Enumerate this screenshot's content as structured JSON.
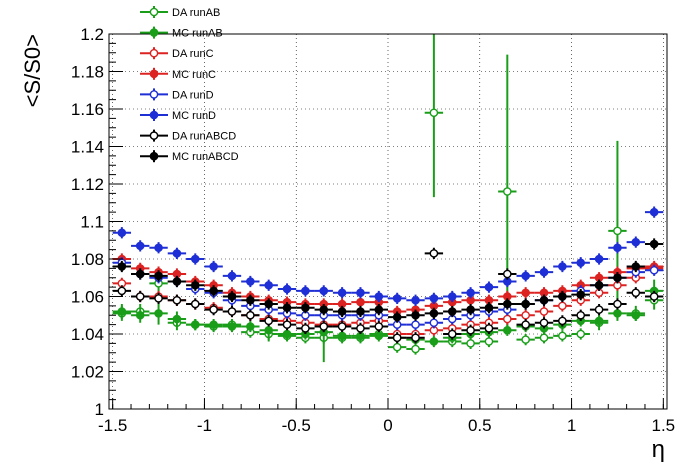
{
  "chart_data": {
    "type": "scatter",
    "xlabel": "η",
    "ylabel": "<S/S0>",
    "xlim": [
      -1.52,
      1.52
    ],
    "ylim": [
      1.0,
      1.2
    ],
    "x_ticks": [
      -1.5,
      -1,
      -0.5,
      0,
      0.5,
      1,
      1.5
    ],
    "x_tick_labels": [
      "-1.5",
      "-1",
      "-0.5",
      "0",
      "0.5",
      "1",
      "1.5"
    ],
    "y_ticks": [
      1.0,
      1.02,
      1.04,
      1.06,
      1.08,
      1.1,
      1.12,
      1.14,
      1.16,
      1.18,
      1.2
    ],
    "y_tick_labels": [
      "1",
      "1.02",
      "1.04",
      "1.06",
      "1.08",
      "1.1",
      "1.12",
      "1.14",
      "1.16",
      "1.18",
      "1.2"
    ],
    "grid": true,
    "legend_position": "top-left",
    "x": [
      -1.45,
      -1.35,
      -1.25,
      -1.15,
      -1.05,
      -0.95,
      -0.85,
      -0.75,
      -0.65,
      -0.55,
      -0.45,
      -0.35,
      -0.25,
      -0.15,
      -0.05,
      0.05,
      0.15,
      0.25,
      0.35,
      0.45,
      0.55,
      0.65,
      0.75,
      0.85,
      0.95,
      1.05,
      1.15,
      1.25,
      1.35,
      1.45
    ],
    "series": [
      {
        "name": "DA runAB",
        "color": "#1a9e1a",
        "marker": "open",
        "values": [
          1.051,
          1.052,
          1.067,
          1.046,
          1.045,
          1.044,
          1.045,
          1.041,
          1.04,
          1.039,
          1.038,
          1.038,
          1.038,
          1.038,
          1.04,
          1.033,
          1.032,
          1.158,
          1.036,
          1.035,
          1.036,
          1.116,
          1.037,
          1.038,
          1.039,
          1.04,
          1.046,
          1.095,
          1.051,
          1.058
        ],
        "errors": [
          0.004,
          0.004,
          0.007,
          0.004,
          0.003,
          0.003,
          0.003,
          0.003,
          0.003,
          0.003,
          0.003,
          0.003,
          0.003,
          0.003,
          0.003,
          0.003,
          0.003,
          0.045,
          0.003,
          0.003,
          0.003,
          0.073,
          0.003,
          0.003,
          0.003,
          0.003,
          0.004,
          0.048,
          0.004,
          0.005
        ]
      },
      {
        "name": "MC runAB",
        "color": "#1a9e1a",
        "marker": "filled",
        "values": [
          1.052,
          1.05,
          1.051,
          1.048,
          1.045,
          1.045,
          1.044,
          1.044,
          1.042,
          1.04,
          1.04,
          1.041,
          1.039,
          1.039,
          1.039,
          1.038,
          1.037,
          1.036,
          1.038,
          1.04,
          1.041,
          1.042,
          1.044,
          1.043,
          1.045,
          1.047,
          1.047,
          1.051,
          1.05,
          1.063
        ],
        "errors": [
          0.004,
          0.004,
          0.006,
          0.004,
          0.003,
          0.003,
          0.003,
          0.003,
          0.006,
          0.003,
          0.003,
          0.016,
          0.003,
          0.003,
          0.003,
          0.003,
          0.003,
          0.003,
          0.003,
          0.003,
          0.003,
          0.003,
          0.003,
          0.003,
          0.003,
          0.003,
          0.003,
          0.003,
          0.003,
          0.006
        ]
      },
      {
        "name": "DA runC",
        "color": "#dd2222",
        "marker": "open",
        "values": [
          1.067,
          1.06,
          1.06,
          1.058,
          1.056,
          1.054,
          1.052,
          1.05,
          1.048,
          1.047,
          1.046,
          1.045,
          1.045,
          1.046,
          1.047,
          1.04,
          1.04,
          1.042,
          1.043,
          1.045,
          1.046,
          1.048,
          1.05,
          1.052,
          1.055,
          1.058,
          1.062,
          1.066,
          1.07,
          1.075
        ],
        "errors": [
          0.003,
          0.003,
          0.003,
          0.003,
          0.003,
          0.003,
          0.003,
          0.003,
          0.003,
          0.003,
          0.003,
          0.003,
          0.003,
          0.003,
          0.003,
          0.003,
          0.003,
          0.003,
          0.003,
          0.003,
          0.003,
          0.003,
          0.003,
          0.003,
          0.003,
          0.003,
          0.003,
          0.003,
          0.003,
          0.003
        ]
      },
      {
        "name": "MC runC",
        "color": "#dd2222",
        "marker": "filled",
        "values": [
          1.08,
          1.075,
          1.073,
          1.072,
          1.068,
          1.066,
          1.062,
          1.06,
          1.058,
          1.057,
          1.056,
          1.056,
          1.056,
          1.057,
          1.057,
          1.052,
          1.053,
          1.055,
          1.057,
          1.058,
          1.058,
          1.06,
          1.062,
          1.062,
          1.063,
          1.066,
          1.07,
          1.073,
          1.075,
          1.076
        ],
        "errors": [
          0.003,
          0.003,
          0.003,
          0.003,
          0.003,
          0.003,
          0.003,
          0.003,
          0.003,
          0.003,
          0.003,
          0.003,
          0.003,
          0.003,
          0.003,
          0.003,
          0.003,
          0.003,
          0.003,
          0.003,
          0.003,
          0.003,
          0.003,
          0.003,
          0.003,
          0.003,
          0.003,
          0.003,
          0.003,
          0.003
        ]
      },
      {
        "name": "DA runD",
        "color": "#1f2fd6",
        "marker": "open",
        "values": [
          1.078,
          1.072,
          1.07,
          1.068,
          1.064,
          1.062,
          1.058,
          1.055,
          1.053,
          1.051,
          1.05,
          1.05,
          1.05,
          1.05,
          1.05,
          1.045,
          1.045,
          1.046,
          1.048,
          1.05,
          1.052,
          1.053,
          1.056,
          1.058,
          1.06,
          1.063,
          1.066,
          1.07,
          1.073,
          1.074
        ],
        "errors": [
          0.003,
          0.003,
          0.003,
          0.003,
          0.003,
          0.003,
          0.003,
          0.003,
          0.003,
          0.003,
          0.003,
          0.003,
          0.003,
          0.003,
          0.003,
          0.003,
          0.003,
          0.003,
          0.003,
          0.003,
          0.003,
          0.003,
          0.003,
          0.003,
          0.003,
          0.003,
          0.003,
          0.003,
          0.003,
          0.003
        ]
      },
      {
        "name": "MC runD",
        "color": "#1f2fd6",
        "marker": "filled",
        "values": [
          1.094,
          1.087,
          1.086,
          1.083,
          1.08,
          1.076,
          1.071,
          1.068,
          1.066,
          1.064,
          1.063,
          1.063,
          1.062,
          1.062,
          1.06,
          1.059,
          1.058,
          1.059,
          1.06,
          1.062,
          1.065,
          1.068,
          1.071,
          1.073,
          1.076,
          1.078,
          1.08,
          1.086,
          1.089,
          1.105
        ],
        "errors": [
          0.003,
          0.003,
          0.003,
          0.003,
          0.003,
          0.003,
          0.003,
          0.003,
          0.003,
          0.003,
          0.003,
          0.003,
          0.003,
          0.003,
          0.003,
          0.003,
          0.003,
          0.003,
          0.003,
          0.003,
          0.003,
          0.003,
          0.003,
          0.003,
          0.003,
          0.003,
          0.003,
          0.003,
          0.003,
          0.003
        ]
      },
      {
        "name": "DA runABCD",
        "color": "#000000",
        "marker": "open",
        "values": [
          1.063,
          1.06,
          1.059,
          1.058,
          1.056,
          1.053,
          1.052,
          1.05,
          1.047,
          1.045,
          1.043,
          1.044,
          1.044,
          1.043,
          1.044,
          1.038,
          1.038,
          1.083,
          1.04,
          1.042,
          1.043,
          1.072,
          1.045,
          1.046,
          1.047,
          1.05,
          1.053,
          1.056,
          1.062,
          1.06
        ],
        "errors": [
          0.003,
          0.003,
          0.003,
          0.003,
          0.003,
          0.003,
          0.003,
          0.003,
          0.003,
          0.003,
          0.003,
          0.003,
          0.003,
          0.003,
          0.003,
          0.003,
          0.003,
          0.003,
          0.003,
          0.003,
          0.003,
          0.003,
          0.003,
          0.003,
          0.003,
          0.003,
          0.003,
          0.003,
          0.003,
          0.003
        ]
      },
      {
        "name": "MC runABCD",
        "color": "#000000",
        "marker": "filled",
        "values": [
          1.076,
          1.072,
          1.071,
          1.068,
          1.066,
          1.063,
          1.06,
          1.058,
          1.056,
          1.054,
          1.054,
          1.053,
          1.052,
          1.052,
          1.053,
          1.049,
          1.05,
          1.051,
          1.052,
          1.053,
          1.054,
          1.056,
          1.056,
          1.058,
          1.06,
          1.061,
          1.066,
          1.07,
          1.076,
          1.088
        ],
        "errors": [
          0.003,
          0.003,
          0.003,
          0.003,
          0.003,
          0.003,
          0.003,
          0.003,
          0.003,
          0.003,
          0.003,
          0.003,
          0.003,
          0.003,
          0.003,
          0.003,
          0.003,
          0.003,
          0.003,
          0.003,
          0.003,
          0.003,
          0.003,
          0.003,
          0.003,
          0.003,
          0.003,
          0.003,
          0.003,
          0.003
        ]
      }
    ]
  }
}
